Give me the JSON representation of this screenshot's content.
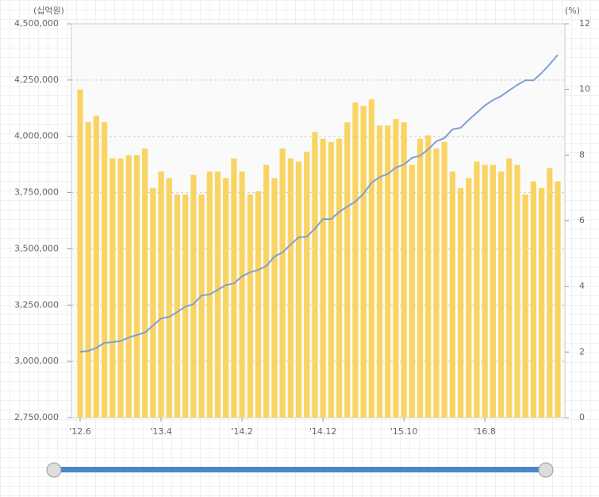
{
  "chart_data": {
    "type": "bar",
    "y_label": "(십억원)",
    "y2_label": "(%)",
    "categories": [
      "'12.6",
      null,
      null,
      null,
      null,
      null,
      null,
      null,
      null,
      null,
      "'13.4",
      null,
      null,
      null,
      null,
      null,
      null,
      null,
      null,
      null,
      "'14.2",
      null,
      null,
      null,
      null,
      null,
      null,
      null,
      null,
      null,
      "'14.12",
      null,
      null,
      null,
      null,
      null,
      null,
      null,
      null,
      null,
      "'15.10",
      null,
      null,
      null,
      null,
      null,
      null,
      null,
      null,
      null,
      "'16.8",
      null,
      null,
      null,
      null,
      null,
      null,
      null,
      null,
      null
    ],
    "series": [
      {
        "type": "bar",
        "axis": "y2",
        "color": "#f9d462",
        "values": [
          10.0,
          9.0,
          9.2,
          9.0,
          7.9,
          7.9,
          8.0,
          8.0,
          8.2,
          7.0,
          7.5,
          7.3,
          6.8,
          6.8,
          7.4,
          6.8,
          7.5,
          7.5,
          7.3,
          7.9,
          7.5,
          6.8,
          6.9,
          7.7,
          7.3,
          8.2,
          7.9,
          7.8,
          8.1,
          8.7,
          8.5,
          8.4,
          8.5,
          9.0,
          9.6,
          9.5,
          9.7,
          8.9,
          8.9,
          9.1,
          9.0,
          7.7,
          8.5,
          8.6,
          8.2,
          8.4,
          7.5,
          7.0,
          7.3,
          7.8,
          7.7,
          7.7,
          7.5,
          7.9,
          7.7,
          6.8,
          7.2,
          7.0,
          7.6,
          7.2
        ]
      },
      {
        "type": "line",
        "axis": "y",
        "color": "#7f9fd4",
        "values": [
          3043000,
          3046000,
          3060000,
          3082000,
          3085000,
          3090000,
          3106000,
          3117000,
          3128000,
          3159000,
          3191000,
          3198000,
          3219000,
          3244000,
          3254000,
          3293000,
          3297000,
          3318000,
          3339000,
          3346000,
          3378000,
          3396000,
          3406000,
          3424000,
          3466000,
          3484000,
          3519000,
          3551000,
          3554000,
          3590000,
          3632000,
          3632000,
          3664000,
          3688000,
          3710000,
          3745000,
          3794000,
          3819000,
          3833000,
          3861000,
          3875000,
          3904000,
          3914000,
          3942000,
          3978000,
          3992000,
          4031000,
          4038000,
          4073000,
          4105000,
          4137000,
          4161000,
          4179000,
          4204000,
          4228000,
          4249000,
          4249000,
          4281000,
          4320000,
          4362000
        ]
      }
    ],
    "ylim": [
      2750000,
      4500000
    ],
    "yticks": [
      {
        "value": 2750000,
        "label": "2,750,000"
      },
      {
        "value": 3000000,
        "label": "3,000,000"
      },
      {
        "value": 3250000,
        "label": "3,250,000"
      },
      {
        "value": 3500000,
        "label": "3,500,000"
      },
      {
        "value": 3750000,
        "label": "3,750,000"
      },
      {
        "value": 4000000,
        "label": "4,000,000"
      },
      {
        "value": 4250000,
        "label": "4,250,000"
      },
      {
        "value": 4500000,
        "label": "4,500,000"
      }
    ],
    "y2lim": [
      0,
      12
    ],
    "y2ticks": [
      0,
      2,
      4,
      6,
      8,
      10,
      12
    ],
    "grid": true
  }
}
